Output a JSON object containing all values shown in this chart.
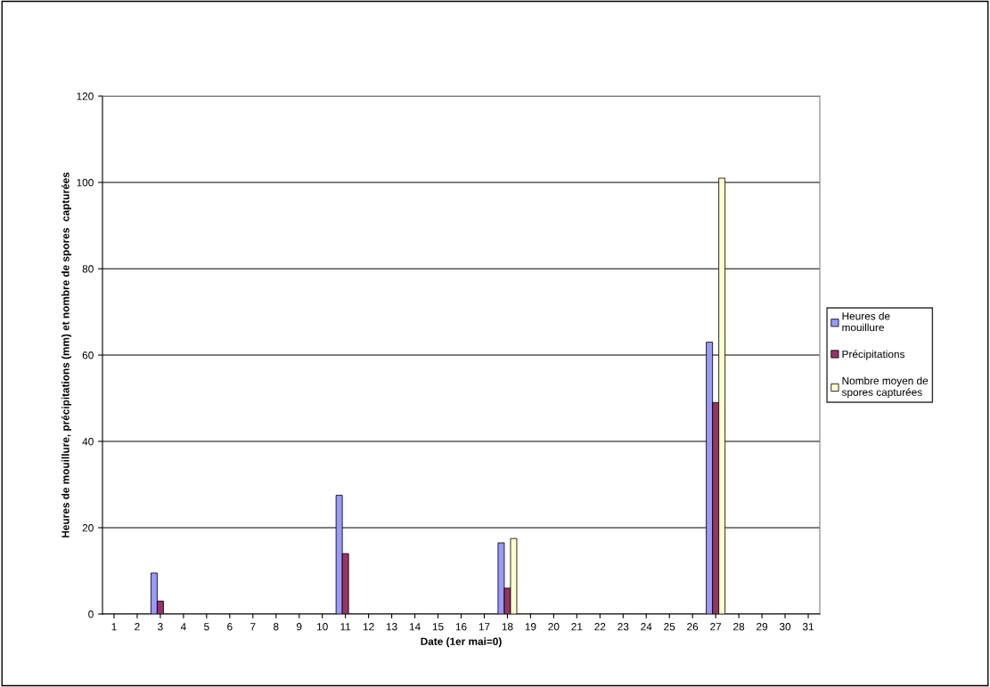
{
  "chart_data": {
    "type": "bar",
    "xlabel": "Date (1er mai=0)",
    "ylabel": "Heures de mouillure, précipitations (mm) et nombre de spores  capturées",
    "categories": [
      "1",
      "2",
      "3",
      "4",
      "5",
      "6",
      "7",
      "8",
      "9",
      "10",
      "11",
      "12",
      "13",
      "14",
      "15",
      "16",
      "17",
      "18",
      "19",
      "20",
      "21",
      "22",
      "23",
      "24",
      "25",
      "26",
      "27",
      "28",
      "29",
      "30",
      "31"
    ],
    "series": [
      {
        "name": "Heures de mouillure",
        "color": "#9999ff",
        "values": [
          null,
          null,
          9.5,
          null,
          null,
          null,
          null,
          null,
          null,
          null,
          27.5,
          null,
          null,
          null,
          null,
          null,
          null,
          16.5,
          null,
          null,
          null,
          null,
          null,
          null,
          null,
          null,
          63,
          null,
          null,
          null,
          null
        ]
      },
      {
        "name": "Précipitations",
        "color": "#993366",
        "values": [
          null,
          null,
          3,
          null,
          null,
          null,
          null,
          null,
          null,
          null,
          14,
          null,
          null,
          null,
          null,
          null,
          null,
          6,
          null,
          null,
          null,
          null,
          null,
          null,
          null,
          null,
          49,
          null,
          null,
          null,
          null
        ]
      },
      {
        "name": "Nombre moyen de spores capturées",
        "color": "#ffffcc",
        "values": [
          null,
          null,
          null,
          null,
          null,
          null,
          null,
          null,
          null,
          null,
          null,
          null,
          null,
          null,
          null,
          null,
          null,
          17.5,
          null,
          null,
          null,
          null,
          null,
          null,
          null,
          null,
          101,
          null,
          null,
          null,
          null
        ]
      }
    ],
    "ylim": [
      0,
      120
    ],
    "yticks": [
      0,
      20,
      40,
      60,
      80,
      100,
      120
    ],
    "grid": "y",
    "legend": "right"
  }
}
